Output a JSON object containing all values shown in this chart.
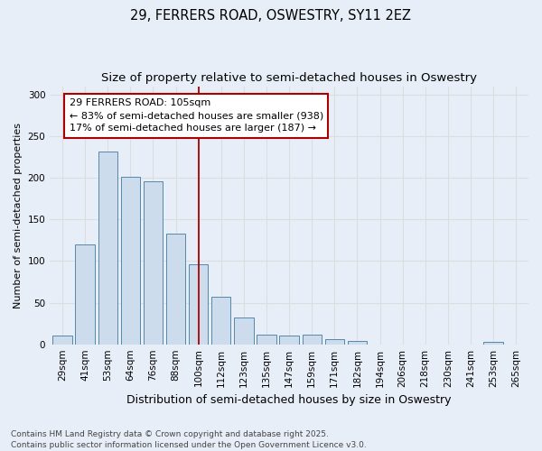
{
  "title_line1": "29, FERRERS ROAD, OSWESTRY, SY11 2EZ",
  "title_line2": "Size of property relative to semi-detached houses in Oswestry",
  "xlabel": "Distribution of semi-detached houses by size in Oswestry",
  "ylabel": "Number of semi-detached properties",
  "categories": [
    "29sqm",
    "41sqm",
    "53sqm",
    "64sqm",
    "76sqm",
    "88sqm",
    "100sqm",
    "112sqm",
    "123sqm",
    "135sqm",
    "147sqm",
    "159sqm",
    "171sqm",
    "182sqm",
    "194sqm",
    "206sqm",
    "218sqm",
    "230sqm",
    "241sqm",
    "253sqm",
    "265sqm"
  ],
  "values": [
    10,
    120,
    232,
    201,
    196,
    133,
    96,
    57,
    32,
    12,
    11,
    12,
    6,
    4,
    0,
    0,
    0,
    0,
    0,
    3,
    0
  ],
  "bar_color": "#ccdcec",
  "bar_edge_color": "#5588aa",
  "grid_color": "#dddddd",
  "background_color": "#e8eef8",
  "vline_x_index": 6,
  "vline_color": "#aa0000",
  "annotation_line1": "29 FERRERS ROAD: 105sqm",
  "annotation_line2": "← 83% of semi-detached houses are smaller (938)",
  "annotation_line3": "17% of semi-detached houses are larger (187) →",
  "annotation_box_color": "#ffffff",
  "annotation_box_edge": "#aa0000",
  "footer_line1": "Contains HM Land Registry data © Crown copyright and database right 2025.",
  "footer_line2": "Contains public sector information licensed under the Open Government Licence v3.0.",
  "ylim": [
    0,
    310
  ],
  "title_fontsize": 10.5,
  "subtitle_fontsize": 9.5,
  "xlabel_fontsize": 9,
  "ylabel_fontsize": 8,
  "tick_fontsize": 7.5,
  "annotation_fontsize": 8,
  "footer_fontsize": 6.5
}
